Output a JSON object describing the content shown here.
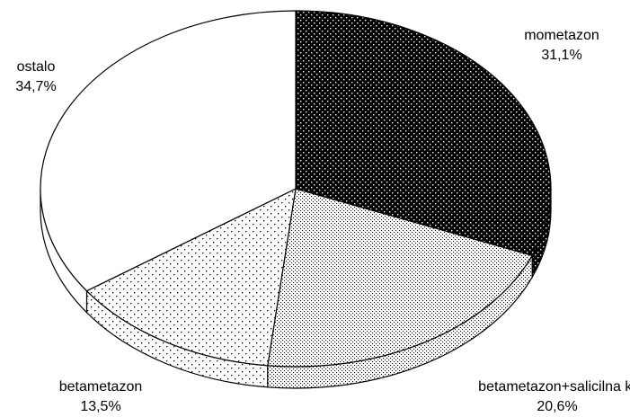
{
  "chart_data": {
    "type": "pie",
    "categories": [
      "mometazon",
      "betametazon+salicilna k.",
      "betametazon",
      "ostalo"
    ],
    "values": [
      31.1,
      20.6,
      13.5,
      34.7
    ],
    "value_labels": [
      "31,1%",
      "20,6%",
      "13,5%",
      "34,7%"
    ]
  }
}
